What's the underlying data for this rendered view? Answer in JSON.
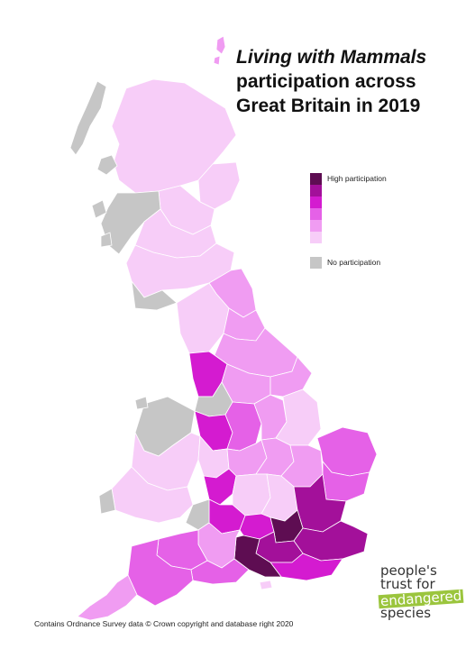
{
  "title": {
    "line1": "Living with Mammals",
    "line2": "participation across",
    "line3": "Great Britain in 2019"
  },
  "legend": {
    "high_label": "High participation",
    "none_label": "No participation",
    "scale_colors": [
      "#5e0d52",
      "#a3109a",
      "#d41bd0",
      "#e561e7",
      "#f09cf2",
      "#f7cdf8"
    ],
    "none_color": "#c6c6c6"
  },
  "region_colors": {
    "none": "#c6c6c6",
    "low": "#f7cdf8",
    "mid_low": "#f09cf2",
    "mid": "#e561e7",
    "high": "#d41bd0",
    "very_high": "#a3109a",
    "top": "#5e0d52"
  },
  "logo": {
    "line1": "people's",
    "line2": "trust for",
    "line3": "endangered",
    "line4": "species"
  },
  "credit": "Contains Ordnance Survey data © Crown copyright and database right 2020"
}
